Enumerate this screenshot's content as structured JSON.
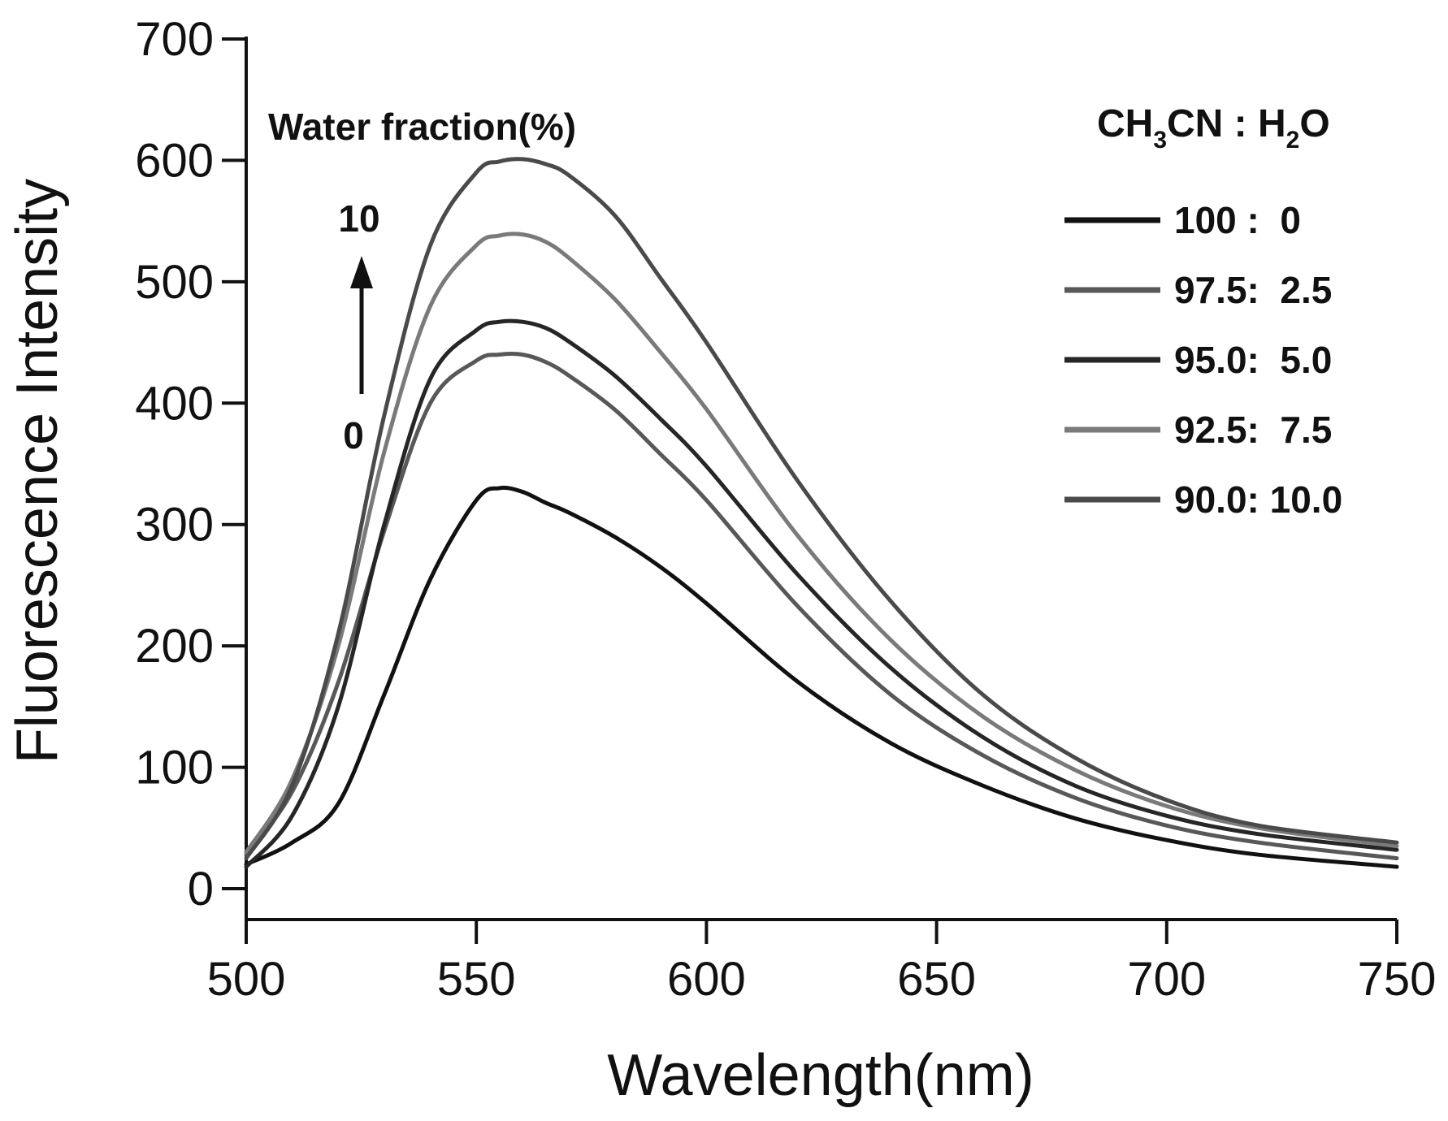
{
  "chart_data": {
    "type": "line",
    "title": "",
    "xlabel": "Wavelength(nm)",
    "ylabel": "Fluorescence Intensity",
    "xlim": [
      500,
      750
    ],
    "ylim": [
      -25,
      700
    ],
    "xticks": [
      500,
      550,
      600,
      650,
      700,
      750
    ],
    "yticks": [
      0,
      100,
      200,
      300,
      400,
      500,
      600,
      700
    ],
    "grid": false,
    "legend": {
      "placement": "top-right",
      "title_parts": [
        "CH",
        "3",
        "CN : H",
        "2",
        "O"
      ]
    },
    "annotation": {
      "label": "Water fraction(%)",
      "arrow_top": "10",
      "arrow_bottom": "0"
    },
    "x": [
      500,
      510,
      520,
      530,
      540,
      550,
      555,
      560,
      565,
      570,
      580,
      590,
      600,
      620,
      640,
      660,
      680,
      700,
      720,
      750
    ],
    "series": [
      {
        "name": "100 :  0",
        "color": "#111111",
        "values": [
          20,
          38,
          70,
          160,
          255,
          320,
          330,
          327,
          318,
          310,
          290,
          265,
          235,
          170,
          120,
          85,
          58,
          40,
          28,
          18
        ]
      },
      {
        "name": "97.5:  2.5",
        "color": "#585858",
        "values": [
          28,
          80,
          170,
          295,
          400,
          435,
          440,
          440,
          434,
          423,
          395,
          358,
          320,
          232,
          160,
          110,
          75,
          52,
          38,
          25
        ]
      },
      {
        "name": "95.0:  5.0",
        "color": "#262626",
        "values": [
          18,
          60,
          150,
          300,
          420,
          460,
          467,
          467,
          462,
          451,
          423,
          387,
          348,
          258,
          182,
          125,
          85,
          60,
          45,
          32
        ]
      },
      {
        "name": "92.5:  7.5",
        "color": "#7a7a7a",
        "values": [
          30,
          90,
          200,
          360,
          480,
          530,
          538,
          539,
          533,
          520,
          486,
          442,
          395,
          290,
          205,
          142,
          98,
          68,
          50,
          35
        ]
      },
      {
        "name": "90.0: 10.0",
        "color": "#4a4a4a",
        "values": [
          25,
          85,
          210,
          390,
          530,
          590,
          599,
          601,
          597,
          588,
          555,
          503,
          450,
          335,
          237,
          160,
          108,
          73,
          52,
          38
        ]
      }
    ]
  }
}
